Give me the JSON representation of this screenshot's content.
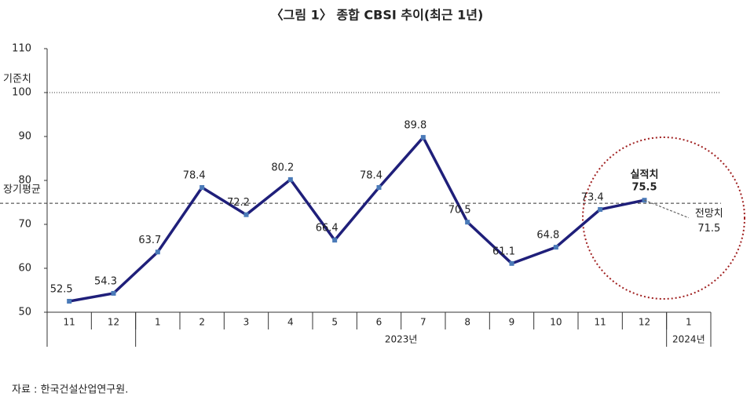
{
  "chart_data": {
    "type": "line",
    "title": "〈그림 1〉 종합 CBSI 추이(최근 1년)",
    "categories": [
      "11",
      "12",
      "1",
      "2",
      "3",
      "4",
      "5",
      "6",
      "7",
      "8",
      "9",
      "10",
      "11",
      "12",
      "1"
    ],
    "year_groups": [
      {
        "label": "2023년",
        "start": 2,
        "end": 13
      },
      {
        "label": "2024년",
        "start": 14,
        "end": 14
      }
    ],
    "series": [
      {
        "name": "실적치",
        "color": "#1f1f7a",
        "values": [
          52.5,
          54.3,
          63.7,
          78.4,
          72.2,
          80.2,
          66.4,
          78.4,
          89.8,
          70.5,
          61.1,
          64.8,
          73.4,
          75.5,
          null
        ]
      },
      {
        "name": "전망치",
        "color": "#666666",
        "values": [
          null,
          null,
          null,
          null,
          null,
          null,
          null,
          null,
          null,
          null,
          null,
          null,
          null,
          75.5,
          71.5
        ]
      }
    ],
    "reference_lines": [
      {
        "label": "기준치",
        "value": 100,
        "style": "dotted"
      },
      {
        "label": "장기평균",
        "value": 74.8,
        "style": "dashed"
      }
    ],
    "ylim": [
      50,
      110
    ],
    "yticks": [
      50,
      60,
      70,
      80,
      90,
      100,
      110
    ],
    "source": "자료 : 한국건설산업연구원."
  }
}
